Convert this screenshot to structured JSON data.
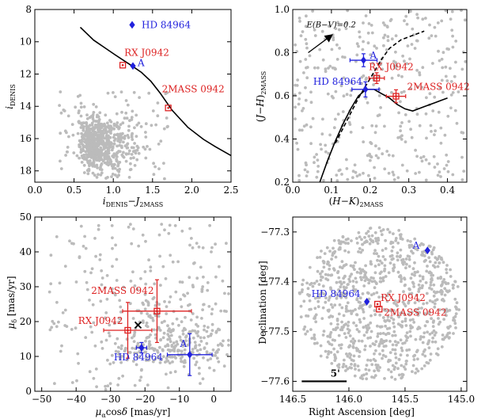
{
  "colors": {
    "background": "#ffffff",
    "points": "#bbbbbb",
    "blue": "#2222dd",
    "red": "#dd2222",
    "axis": "#000000"
  },
  "chart_data": [
    {
      "type": "scatter",
      "panel": "colour-magnitude",
      "xlabel": "i_DENIS − J_2MASS",
      "ylabel": "i_DENIS",
      "xlim": [
        0.0,
        2.5
      ],
      "ylim": [
        18.7,
        8.0
      ],
      "y_inverted": true,
      "xticks": [
        "0.0",
        "0.5",
        "1.0",
        "1.5",
        "2.0",
        "2.5"
      ],
      "yticks": [
        "8",
        "10",
        "12",
        "14",
        "16",
        "18"
      ],
      "isochrone_line": {
        "x": [
          0.58,
          0.75,
          0.9,
          1.02,
          1.13,
          1.24,
          1.36,
          1.48,
          1.6,
          1.75,
          1.95,
          2.15,
          2.3,
          2.5
        ],
        "y": [
          9.1,
          9.9,
          10.4,
          10.8,
          11.15,
          11.5,
          11.9,
          12.45,
          13.2,
          14.25,
          15.3,
          16.05,
          16.5,
          17.05
        ]
      },
      "background_stars": {
        "count": 700,
        "seed": 11
      },
      "marked": [
        {
          "label": "HD 84964",
          "x": 1.24,
          "y": 8.95,
          "color": "blue",
          "marker": "diamond"
        },
        {
          "label": "A",
          "x": 1.25,
          "y": 11.5,
          "color": "blue",
          "marker": "diamond"
        },
        {
          "label": "RX J0942",
          "x": 1.12,
          "y": 11.45,
          "color": "red",
          "marker": "square"
        },
        {
          "label": "2MASS 0942",
          "x": 1.7,
          "y": 14.1,
          "color": "red",
          "marker": "square"
        }
      ]
    },
    {
      "type": "scatter",
      "panel": "colour-colour",
      "xlabel": "(H−K)_2MASS",
      "ylabel": "(J−H)_2MASS",
      "xlim": [
        0.0,
        0.45
      ],
      "ylim": [
        0.2,
        1.0
      ],
      "xticks": [
        "0.0",
        "0.1",
        "0.2",
        "0.3",
        "0.4"
      ],
      "yticks": [
        "0.2",
        "0.4",
        "0.6",
        "0.8",
        "1.0"
      ],
      "reddening_label": "E(B−V)=0.2",
      "reddening_vector": {
        "from": [
          0.04,
          0.8
        ],
        "to": [
          0.1,
          0.88
        ]
      },
      "solid_line": {
        "x": [
          0.07,
          0.09,
          0.11,
          0.13,
          0.15,
          0.17,
          0.19,
          0.21,
          0.23,
          0.25,
          0.27,
          0.29,
          0.31,
          0.34,
          0.37,
          0.4
        ],
        "y": [
          0.2,
          0.3,
          0.39,
          0.47,
          0.54,
          0.6,
          0.63,
          0.63,
          0.61,
          0.59,
          0.56,
          0.54,
          0.53,
          0.55,
          0.57,
          0.59
        ]
      },
      "dashed_line": {
        "x": [
          0.11,
          0.13,
          0.15,
          0.17,
          0.19,
          0.21,
          0.23,
          0.25,
          0.28,
          0.31,
          0.34
        ],
        "y": [
          0.38,
          0.45,
          0.52,
          0.59,
          0.65,
          0.71,
          0.77,
          0.82,
          0.86,
          0.88,
          0.9
        ]
      },
      "background_stars": {
        "count": 380,
        "seed": 23
      },
      "marked": [
        {
          "label": "A",
          "x": 0.183,
          "y": 0.765,
          "xerr": 0.035,
          "yerr": 0.03,
          "color": "blue",
          "marker": "diamond"
        },
        {
          "label": "HD 84964",
          "x": 0.188,
          "y": 0.63,
          "xerr": 0.035,
          "yerr": 0.035,
          "color": "blue",
          "marker": "diamond"
        },
        {
          "label": "RX J0942",
          "x": 0.217,
          "y": 0.682,
          "xerr": 0.02,
          "yerr": 0.025,
          "color": "red",
          "marker": "square"
        },
        {
          "label": "2MASS 0942",
          "x": 0.267,
          "y": 0.598,
          "xerr": 0.025,
          "yerr": 0.03,
          "color": "red",
          "marker": "square"
        }
      ]
    },
    {
      "type": "scatter",
      "panel": "proper-motion",
      "xlabel": "μ_α cosδ [mas/yr]",
      "ylabel": "μ_δ [mas/yr]",
      "xlim": [
        -52,
        5
      ],
      "ylim": [
        0,
        50
      ],
      "xticks": [
        "−50",
        "−40",
        "−30",
        "−20",
        "−10",
        "0"
      ],
      "yticks": [
        "0",
        "10",
        "20",
        "30",
        "40",
        "50"
      ],
      "background_stars": {
        "count": 500,
        "seed": 37
      },
      "centroid": {
        "x": -22,
        "y": 19,
        "marker": "x"
      },
      "marked": [
        {
          "label": "2MASS 0942",
          "x": -16.5,
          "y": 23,
          "xerr": 10,
          "yerr": 9,
          "color": "red",
          "marker": "square"
        },
        {
          "label": "RX J0942",
          "x": -25,
          "y": 17.5,
          "xerr": 7,
          "yerr": 8,
          "color": "red",
          "marker": "square"
        },
        {
          "label": "HD 84964",
          "x": -21,
          "y": 12.5,
          "xerr": 1.5,
          "yerr": 1.5,
          "color": "blue",
          "marker": "diamond"
        },
        {
          "label": "A",
          "x": -7,
          "y": 10.5,
          "xerr": 6.5,
          "yerr": 6,
          "color": "blue",
          "marker": "diamond"
        }
      ]
    },
    {
      "type": "scatter",
      "panel": "sky",
      "xlabel": "Right Ascension [deg]",
      "ylabel": "Declination [deg]",
      "xlim": [
        146.5,
        144.95
      ],
      "ylim": [
        -77.62,
        -77.27
      ],
      "xticks": [
        "146.5",
        "146.0",
        "145.5",
        "145.0"
      ],
      "yticks": [
        "−77.3",
        "−77.4",
        "−77.5",
        "−77.6"
      ],
      "scale_bar_label": "5'",
      "background_stars": {
        "count": 900,
        "seed": 53
      },
      "marked": [
        {
          "label": "A",
          "x": 145.3,
          "y": -77.337,
          "color": "blue",
          "marker": "diamond"
        },
        {
          "label": "HD 84964",
          "x": 145.84,
          "y": -77.44,
          "color": "blue",
          "marker": "diamond"
        },
        {
          "label": "RX J0942",
          "x": 145.745,
          "y": -77.445,
          "color": "red",
          "marker": "square"
        },
        {
          "label": "2MASS 0942",
          "x": 145.73,
          "y": -77.455,
          "color": "red",
          "marker": "square"
        }
      ]
    }
  ]
}
